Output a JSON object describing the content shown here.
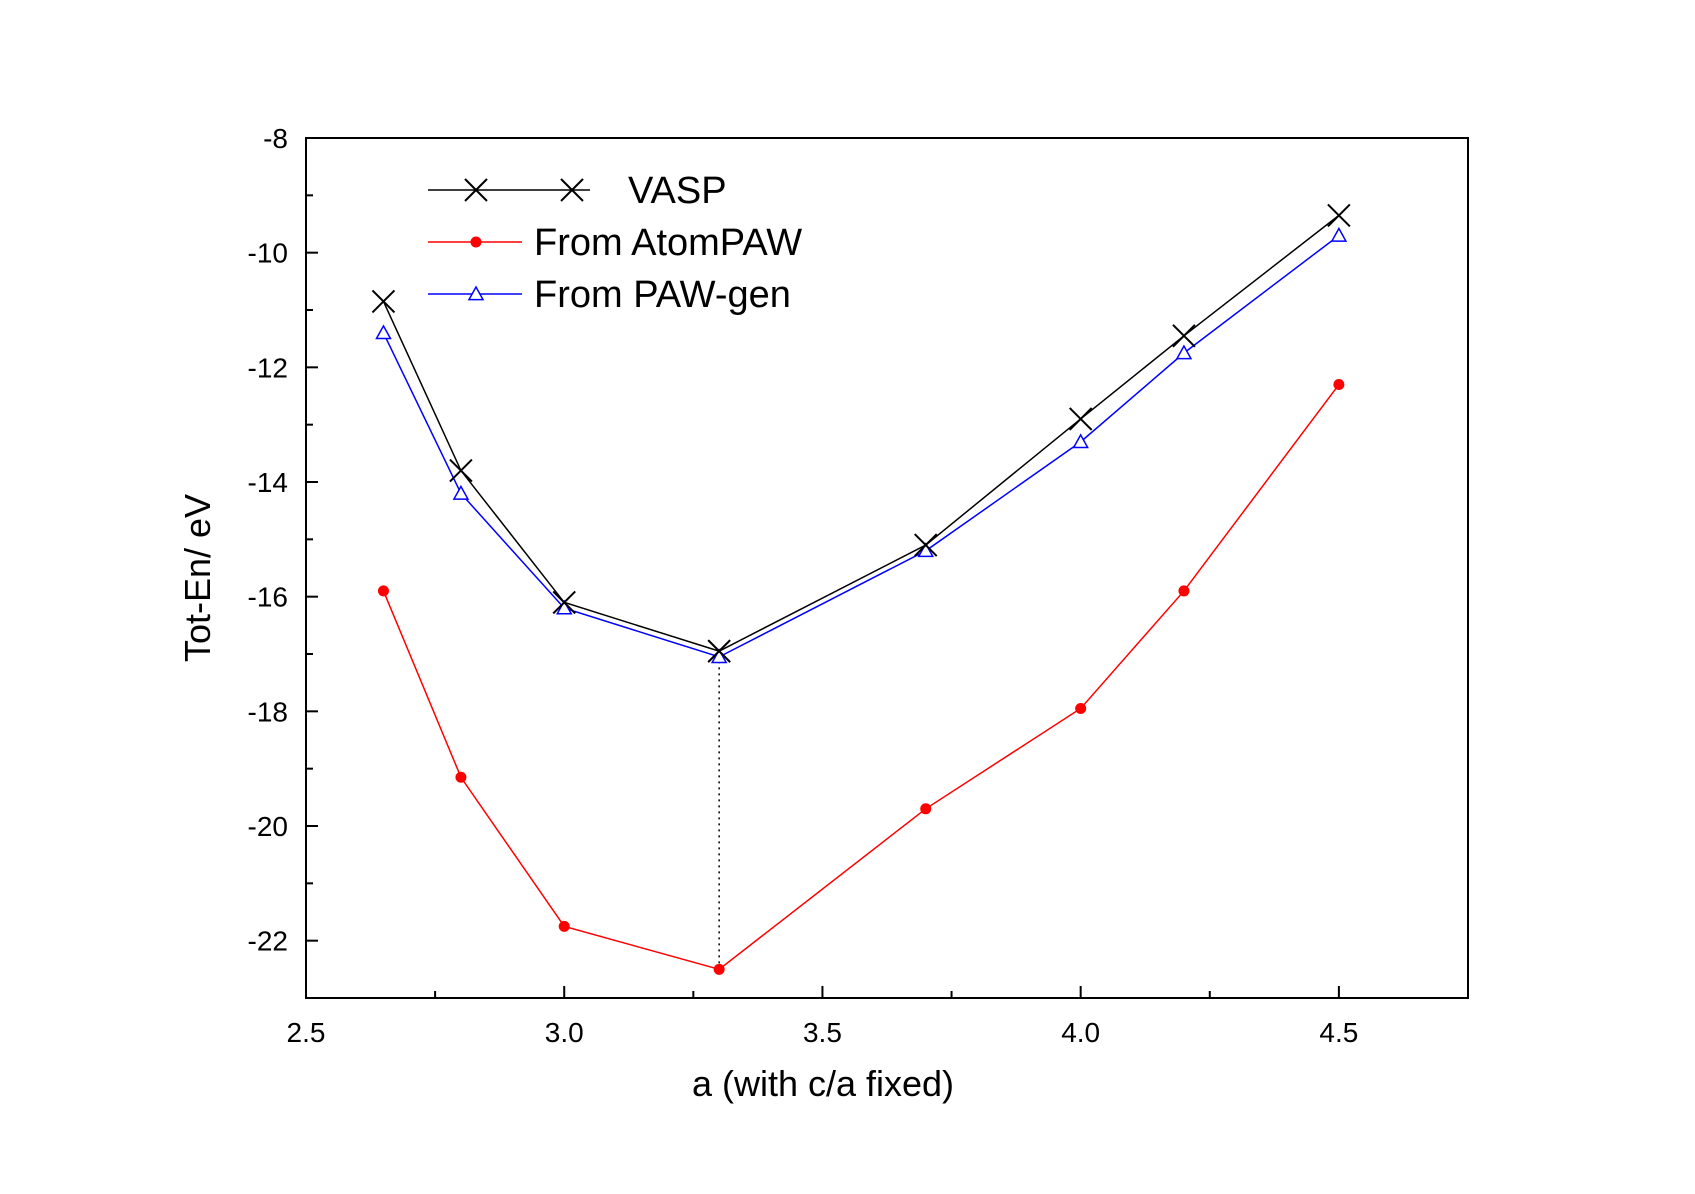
{
  "chart_data": {
    "type": "line",
    "title": "",
    "xlabel": "a (with c/a fixed)",
    "ylabel": "Tot-En/ eV",
    "xlim": [
      2.5,
      4.75
    ],
    "ylim": [
      -23,
      -8
    ],
    "x_ticks": [
      2.5,
      3.0,
      3.5,
      4.0,
      4.5
    ],
    "x_tick_labels": [
      "2.5",
      "3.0",
      "3.5",
      "4.0",
      "4.5"
    ],
    "y_ticks": [
      -8,
      -10,
      -12,
      -14,
      -16,
      -18,
      -20,
      -22
    ],
    "y_tick_labels": [
      "-8",
      "-10",
      "-12",
      "-14",
      "-16",
      "-18",
      "-20",
      "-22"
    ],
    "x_minor_ticks": [
      2.75,
      3.25,
      3.75,
      4.25,
      4.75
    ],
    "y_minor_ticks": [
      -9,
      -11,
      -13,
      -15,
      -17,
      -19,
      -21,
      -23
    ],
    "grid": false,
    "legend_position": "top-left",
    "reference_line": {
      "x": 3.3,
      "from_y": -22.5,
      "to_y": -17.05,
      "style": "dotted"
    },
    "series": [
      {
        "name": "VASP",
        "color": "#000000",
        "marker": "x-cross",
        "x": [
          2.65,
          2.8,
          3.0,
          3.3,
          3.7,
          4.0,
          4.2,
          4.5
        ],
        "y": [
          -10.85,
          -13.8,
          -16.1,
          -16.95,
          -15.1,
          -12.9,
          -11.45,
          -9.35
        ]
      },
      {
        "name": "From AtomPAW",
        "color": "#ff0000",
        "marker": "filled-circle",
        "x": [
          2.65,
          2.8,
          3.0,
          3.3,
          3.7,
          4.0,
          4.2,
          4.5
        ],
        "y": [
          -15.9,
          -19.15,
          -21.75,
          -22.5,
          -19.7,
          -17.95,
          -15.9,
          -12.3
        ]
      },
      {
        "name": "From PAW-gen",
        "color": "#0000ff",
        "marker": "open-triangle",
        "x": [
          2.65,
          2.8,
          3.0,
          3.3,
          3.7,
          4.0,
          4.2,
          4.5
        ],
        "y": [
          -11.4,
          -14.2,
          -16.2,
          -17.05,
          -15.2,
          -13.3,
          -11.75,
          -9.7
        ]
      }
    ]
  }
}
